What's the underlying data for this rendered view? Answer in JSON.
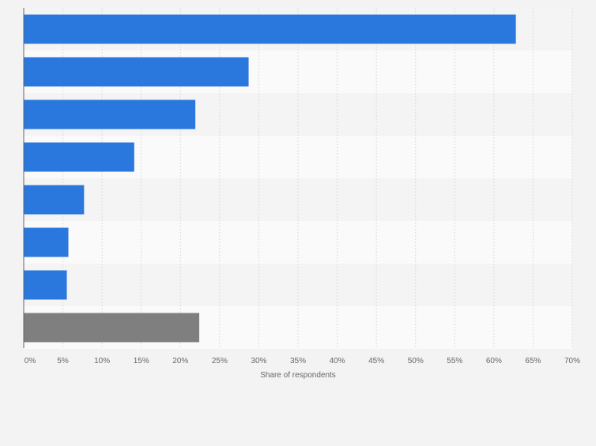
{
  "chart_data": {
    "type": "bar",
    "orientation": "horizontal",
    "xlabel": "Share of respondents",
    "xlim": [
      0,
      70
    ],
    "xticks": [
      "0%",
      "5%",
      "10%",
      "15%",
      "20%",
      "25%",
      "30%",
      "35%",
      "40%",
      "45%",
      "50%",
      "55%",
      "60%",
      "65%",
      "70%"
    ],
    "values": [
      62.8,
      28.7,
      21.9,
      14.1,
      7.7,
      5.7,
      5.5,
      22.4
    ],
    "bar_colors": [
      "#2a77dd",
      "#2a77dd",
      "#2a77dd",
      "#2a77dd",
      "#2a77dd",
      "#2a77dd",
      "#2a77dd",
      "#7f7f7f"
    ],
    "grid": true
  },
  "colors": {
    "background": "#f3f3f3",
    "band_dark": "#f4f4f4",
    "band_light": "#fafafa",
    "gridline": "#dcdcdc",
    "axis": "#666666",
    "tick_text": "#666666"
  }
}
